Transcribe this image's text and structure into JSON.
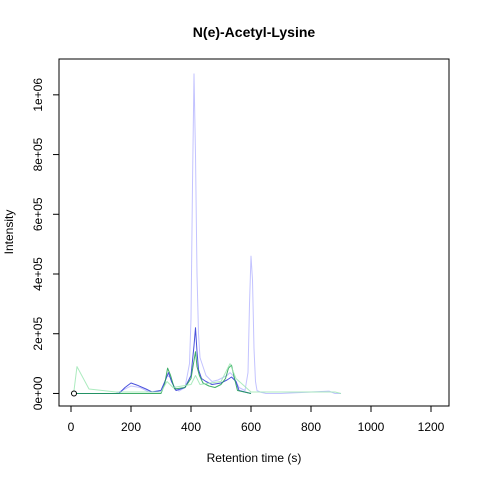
{
  "chart_data": {
    "type": "line",
    "title": "N(e)-Acetyl-Lysine",
    "xlabel": "Retention time (s)",
    "ylabel": "Intensity",
    "xlim": [
      -40,
      1260
    ],
    "ylim": [
      -42000,
      1120000
    ],
    "x_ticks": [
      0,
      200,
      400,
      600,
      800,
      1000,
      1200
    ],
    "x_tick_labels": [
      "0",
      "200",
      "400",
      "600",
      "800",
      "1000",
      "1200"
    ],
    "y_ticks": [
      0,
      200000,
      400000,
      600000,
      800000,
      1000000
    ],
    "y_tick_labels": [
      "0e+00",
      "2e+05",
      "4e+05",
      "6e+05",
      "8e+05",
      "1e+06"
    ],
    "grid": false,
    "legend": "none",
    "colors": {
      "blue_light": "#b8b8ff",
      "blue": "#2a32d6",
      "green": "#1ea050",
      "green_light": "#9ee8b4"
    },
    "marker": {
      "x": 10,
      "y": 0,
      "shape": "open-circle"
    },
    "series": [
      {
        "color": "#b8b8ff",
        "x": [
          0,
          150,
          180,
          200,
          230,
          260,
          300,
          310,
          320,
          330,
          345,
          360,
          380,
          395,
          400,
          405,
          410,
          415,
          420,
          425,
          430,
          440,
          450,
          470,
          490,
          510,
          520,
          530,
          540,
          550,
          560,
          580,
          590,
          595,
          600,
          605,
          610,
          615,
          620,
          630,
          650,
          700,
          860,
          880,
          900
        ],
        "y": [
          0,
          0,
          15000,
          25000,
          20000,
          5000,
          10000,
          30000,
          60000,
          55000,
          20000,
          8000,
          20000,
          100000,
          250000,
          700000,
          1070000,
          800000,
          400000,
          200000,
          120000,
          90000,
          60000,
          40000,
          45000,
          55000,
          60000,
          70000,
          60000,
          40000,
          20000,
          10000,
          70000,
          300000,
          460000,
          380000,
          150000,
          40000,
          10000,
          5000,
          0,
          0,
          8000,
          0,
          0
        ]
      },
      {
        "color": "#2a32d6",
        "x": [
          0,
          160,
          180,
          200,
          220,
          250,
          270,
          300,
          315,
          325,
          335,
          350,
          380,
          400,
          410,
          415,
          420,
          425,
          435,
          450,
          470,
          500,
          520,
          535,
          550,
          560,
          600
        ],
        "y": [
          0,
          0,
          20000,
          35000,
          28000,
          15000,
          5000,
          10000,
          45000,
          70000,
          40000,
          10000,
          20000,
          60000,
          160000,
          220000,
          140000,
          80000,
          50000,
          40000,
          30000,
          35000,
          45000,
          55000,
          40000,
          10000,
          0
        ]
      },
      {
        "color": "#1ea050",
        "x": [
          0,
          300,
          312,
          322,
          332,
          345,
          380,
          400,
          410,
          415,
          420,
          428,
          440,
          460,
          480,
          500,
          515,
          525,
          535,
          545,
          555,
          600
        ],
        "y": [
          0,
          0,
          30000,
          85000,
          60000,
          15000,
          20000,
          50000,
          110000,
          140000,
          90000,
          60000,
          35000,
          25000,
          20000,
          30000,
          50000,
          85000,
          95000,
          50000,
          10000,
          0
        ]
      },
      {
        "color": "#9ee8b4",
        "x": [
          0,
          10,
          20,
          60,
          150,
          300,
          320,
          340,
          400,
          415,
          430,
          500,
          530,
          550,
          600,
          880,
          900
        ],
        "y": [
          0,
          10000,
          90000,
          15000,
          5000,
          5000,
          40000,
          20000,
          30000,
          60000,
          30000,
          40000,
          100000,
          50000,
          5000,
          5000,
          0
        ]
      }
    ]
  }
}
